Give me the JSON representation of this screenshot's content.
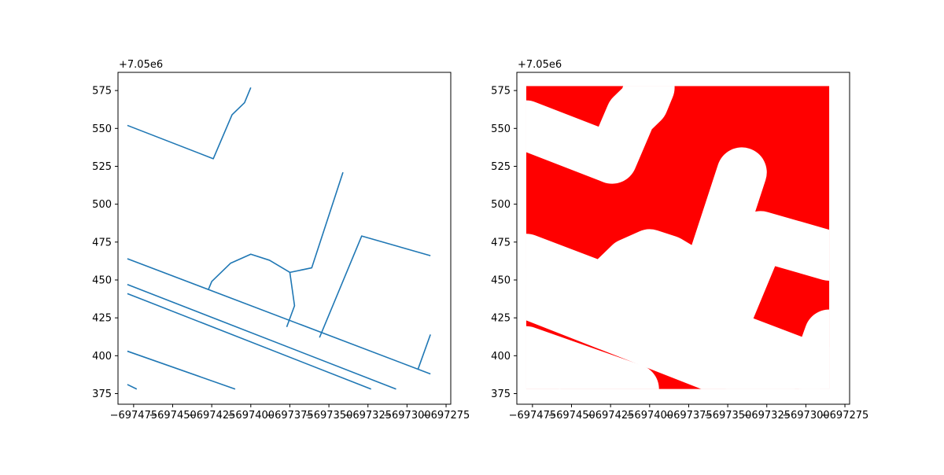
{
  "chart_data": [
    {
      "type": "line",
      "title": "",
      "xlabel": "",
      "ylabel": "",
      "offset_label": "+7.05e6",
      "xlim": [
        -697485,
        -697272
      ],
      "ylim": [
        368,
        587
      ],
      "x_ticks": [
        -697475,
        -697450,
        -697425,
        -697400,
        -697375,
        -697350,
        -697325,
        -697300,
        -697275
      ],
      "x_tick_labels": [
        "−697475",
        "−697450",
        "−697425",
        "−697400",
        "−697375",
        "−697350",
        "−697325",
        "−697300",
        "−697275"
      ],
      "y_ticks": [
        375,
        400,
        425,
        450,
        475,
        500,
        525,
        550,
        575
      ],
      "y_tick_labels": [
        "375",
        "400",
        "425",
        "450",
        "475",
        "500",
        "525",
        "550",
        "575"
      ],
      "grid": false,
      "line_color": "#1f77b4",
      "lines": [
        [
          [
            -697479,
            552
          ],
          [
            -697424,
            530
          ],
          [
            -697412,
            559
          ],
          [
            -697404,
            567
          ],
          [
            -697400,
            577
          ]
        ],
        [
          [
            -697479,
            464
          ],
          [
            -697285,
            388
          ]
        ],
        [
          [
            -697479,
            447
          ],
          [
            -697307,
            378
          ]
        ],
        [
          [
            -697479,
            441
          ],
          [
            -697323,
            378
          ]
        ],
        [
          [
            -697479,
            403
          ],
          [
            -697410,
            378
          ]
        ],
        [
          [
            -697479,
            381
          ],
          [
            -697473,
            378
          ]
        ],
        [
          [
            -697427,
            444
          ],
          [
            -697425,
            449
          ],
          [
            -697413,
            461
          ],
          [
            -697400,
            467
          ],
          [
            -697388,
            463
          ],
          [
            -697375,
            455
          ],
          [
            -697361,
            458
          ],
          [
            -697341,
            521
          ]
        ],
        [
          [
            -697375,
            455
          ],
          [
            -697372,
            433
          ],
          [
            -697377,
            419
          ]
        ],
        [
          [
            -697356,
            412
          ],
          [
            -697329,
            479
          ],
          [
            -697285,
            466
          ]
        ],
        [
          [
            -697293,
            391
          ],
          [
            -697285,
            414
          ]
        ]
      ]
    },
    {
      "type": "area",
      "title": "",
      "xlabel": "",
      "ylabel": "",
      "offset_label": "+7.05e6",
      "xlim": [
        -697485,
        -697272
      ],
      "ylim": [
        368,
        587
      ],
      "x_ticks": [
        -697475,
        -697450,
        -697425,
        -697400,
        -697375,
        -697350,
        -697325,
        -697300,
        -697275
      ],
      "x_tick_labels": [
        "−697475",
        "−697450",
        "−697425",
        "−697400",
        "−697375",
        "−697350",
        "−697325",
        "−697300",
        "−697275"
      ],
      "y_ticks": [
        375,
        400,
        425,
        450,
        475,
        500,
        525,
        550,
        575
      ],
      "y_tick_labels": [
        "375",
        "400",
        "425",
        "450",
        "475",
        "500",
        "525",
        "550",
        "575"
      ],
      "grid": false,
      "fill_color": "#ff0000",
      "hole_color": "#ffffff",
      "extent": {
        "x": [
          -697479,
          -697285
        ],
        "y": [
          378,
          578
        ]
      },
      "holes": [
        [
          [
            -697479,
            552
          ],
          [
            -697424,
            530
          ],
          [
            -697412,
            559
          ],
          [
            -697404,
            567
          ],
          [
            -697400,
            577
          ]
        ],
        [
          [
            -697479,
            464
          ],
          [
            -697285,
            388
          ]
        ],
        [
          [
            -697479,
            447
          ],
          [
            -697307,
            378
          ]
        ],
        [
          [
            -697479,
            441
          ],
          [
            -697323,
            378
          ]
        ],
        [
          [
            -697479,
            403
          ],
          [
            -697410,
            378
          ]
        ],
        [
          [
            -697479,
            381
          ],
          [
            -697473,
            378
          ]
        ],
        [
          [
            -697427,
            444
          ],
          [
            -697425,
            449
          ],
          [
            -697413,
            461
          ],
          [
            -697400,
            467
          ],
          [
            -697388,
            463
          ],
          [
            -697375,
            455
          ],
          [
            -697361,
            458
          ],
          [
            -697341,
            521
          ]
        ],
        [
          [
            -697375,
            455
          ],
          [
            -697372,
            433
          ],
          [
            -697377,
            419
          ]
        ],
        [
          [
            -697356,
            412
          ],
          [
            -697329,
            479
          ],
          [
            -697285,
            466
          ]
        ],
        [
          [
            -697293,
            391
          ],
          [
            -697285,
            414
          ]
        ]
      ],
      "hole_width": 16
    }
  ]
}
